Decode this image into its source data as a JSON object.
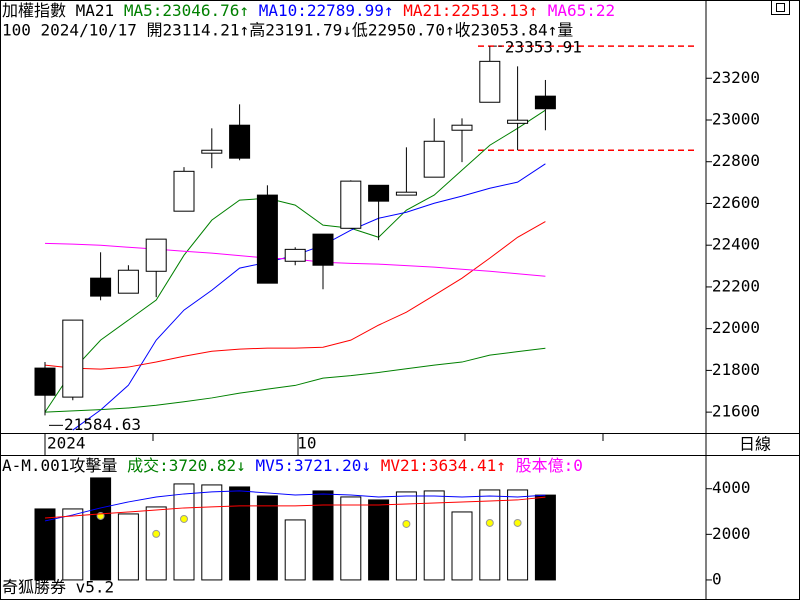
{
  "chart_data": [
    {
      "type": "candlestick",
      "title": "加權指數 MA21",
      "info": "100 2024/10/17 開23114.21↑高23191.79↓低22950.70↑收23053.84↑量",
      "categories": [
        "2024",
        null,
        null,
        null,
        null,
        null,
        null,
        null,
        null,
        "10",
        null,
        null,
        null,
        null,
        null,
        null,
        null,
        null,
        null
      ],
      "open": [
        21811,
        21672,
        22242,
        22170,
        22275,
        22563,
        22841,
        22975,
        22640,
        22323,
        22453,
        22481,
        22687,
        22640,
        22726,
        22951,
        23085,
        22984,
        23114.21
      ],
      "close": [
        21681,
        22041,
        22156,
        22280,
        22429,
        22754,
        22855,
        22817,
        22218,
        22380,
        22304,
        22707,
        22611,
        22654,
        22898,
        22975,
        23281,
        22999,
        23053.84
      ],
      "high": [
        21840,
        22041,
        22366,
        22304,
        22429,
        22774,
        22960,
        23075,
        22687,
        22390,
        22453,
        22711,
        22687,
        22869,
        23008,
        23008,
        23353.91,
        23257,
        23191.79
      ],
      "low": [
        21584.63,
        21657,
        22136,
        22170,
        22151,
        22563,
        22769,
        22807,
        22218,
        22304,
        22189,
        22481,
        22424,
        22640,
        22726,
        22798,
        23085,
        22855,
        22950.7
      ],
      "high_value_labels": [
        null,
        null,
        null,
        null,
        null,
        null,
        null,
        null,
        null,
        null,
        null,
        null,
        null,
        null,
        null,
        null,
        "23353.91",
        null,
        null
      ],
      "low_value_labels": [
        "21584.63",
        null,
        null,
        null,
        null,
        null,
        null,
        null,
        null,
        null,
        null,
        null,
        null,
        null,
        null,
        null,
        null,
        null,
        null
      ],
      "hlines": [
        23353.91,
        22855
      ],
      "hline_color": "#ff0000",
      "series": [
        {
          "name": "MA5",
          "legend_text": ":23046.76↑",
          "color": "#008000",
          "values": [
            21600,
            21801,
            21945,
            22041,
            22137,
            22352,
            22520,
            22616,
            22625,
            22592,
            22496,
            22481,
            22438,
            22568,
            22640,
            22760,
            22879,
            22960,
            23046.76
          ]
        },
        {
          "name": "MA10",
          "legend_text": ":22789.99↑",
          "color": "#0000ff",
          "values": [
            null,
            21514,
            21610,
            21729,
            21945,
            22089,
            22184,
            22290,
            22318,
            22352,
            22400,
            22472,
            22529,
            22558,
            22601,
            22635,
            22673,
            22702,
            22789.99
          ]
        },
        {
          "name": "MA21",
          "legend_text": ":22513.13↑",
          "color": "#ff0000",
          "values": [
            21825,
            21811,
            21806,
            21816,
            21840,
            21868,
            21892,
            21902,
            21907,
            21907,
            21911,
            21945,
            22017,
            22079,
            22160,
            22242,
            22338,
            22438,
            22513.13
          ]
        },
        {
          "name": "MA65",
          "legend_text": ":22",
          "color": "#ff00ff",
          "values": [
            22409,
            22405,
            22400,
            22390,
            22381,
            22371,
            22362,
            22350,
            22338,
            22333,
            22318,
            22313,
            22309,
            22302,
            22295,
            22285,
            22275,
            22263,
            22251
          ]
        },
        {
          "color": "#008000",
          "values": [
            21600,
            21606,
            21612,
            21620,
            21633,
            21650,
            21668,
            21691,
            21710,
            21728,
            21763,
            21775,
            21790,
            21808,
            21825,
            21840,
            21873,
            21890,
            21906
          ]
        }
      ],
      "ylim": [
        21500,
        23575
      ],
      "yticks": [
        21600,
        21800,
        22000,
        22200,
        22400,
        22600,
        22800,
        23000,
        23200
      ]
    },
    {
      "type": "bar",
      "title": "A-M.001攻擊量",
      "name": "成交",
      "legend_text": ":3720.82↓",
      "legend_color": "#008000",
      "values": [
        3114,
        3114,
        4474,
        2895,
        3202,
        4211,
        4167,
        4079,
        3684,
        2632,
        3904,
        3640,
        3509,
        3860,
        3904,
        2982,
        3947,
        3947,
        3720.82
      ],
      "series": [
        {
          "color": "#ffff00",
          "style": "dots",
          "values": [
            null,
            null,
            2807,
            null,
            2018,
            2675,
            null,
            null,
            null,
            null,
            null,
            null,
            null,
            2456,
            null,
            null,
            2500,
            2500,
            null
          ]
        },
        {
          "name": "MV5",
          "legend_text": ":3721.20↓",
          "color": "#0000ff",
          "values": [
            2588,
            2851,
            3158,
            3421,
            3640,
            3772,
            3860,
            3904,
            3816,
            3728,
            3772,
            3728,
            3640,
            3684,
            3684,
            3640,
            3684,
            3640,
            3721.2
          ]
        },
        {
          "name": "MV21",
          "legend_text": ":3634.41↑",
          "color": "#ff0000",
          "values": [
            2719,
            2807,
            2895,
            2982,
            3070,
            3158,
            3202,
            3246,
            3246,
            3246,
            3289,
            3289,
            3289,
            3333,
            3377,
            3421,
            3465,
            3509,
            3634.41
          ]
        }
      ],
      "extra_legend": {
        "text": "股本億:0",
        "color": "#ff00ff"
      },
      "ylim": [
        -880,
        5480
      ],
      "yticks": [
        0,
        2000,
        4000
      ]
    }
  ],
  "period": "日線",
  "footer": "奇狐勝券 v5.2"
}
